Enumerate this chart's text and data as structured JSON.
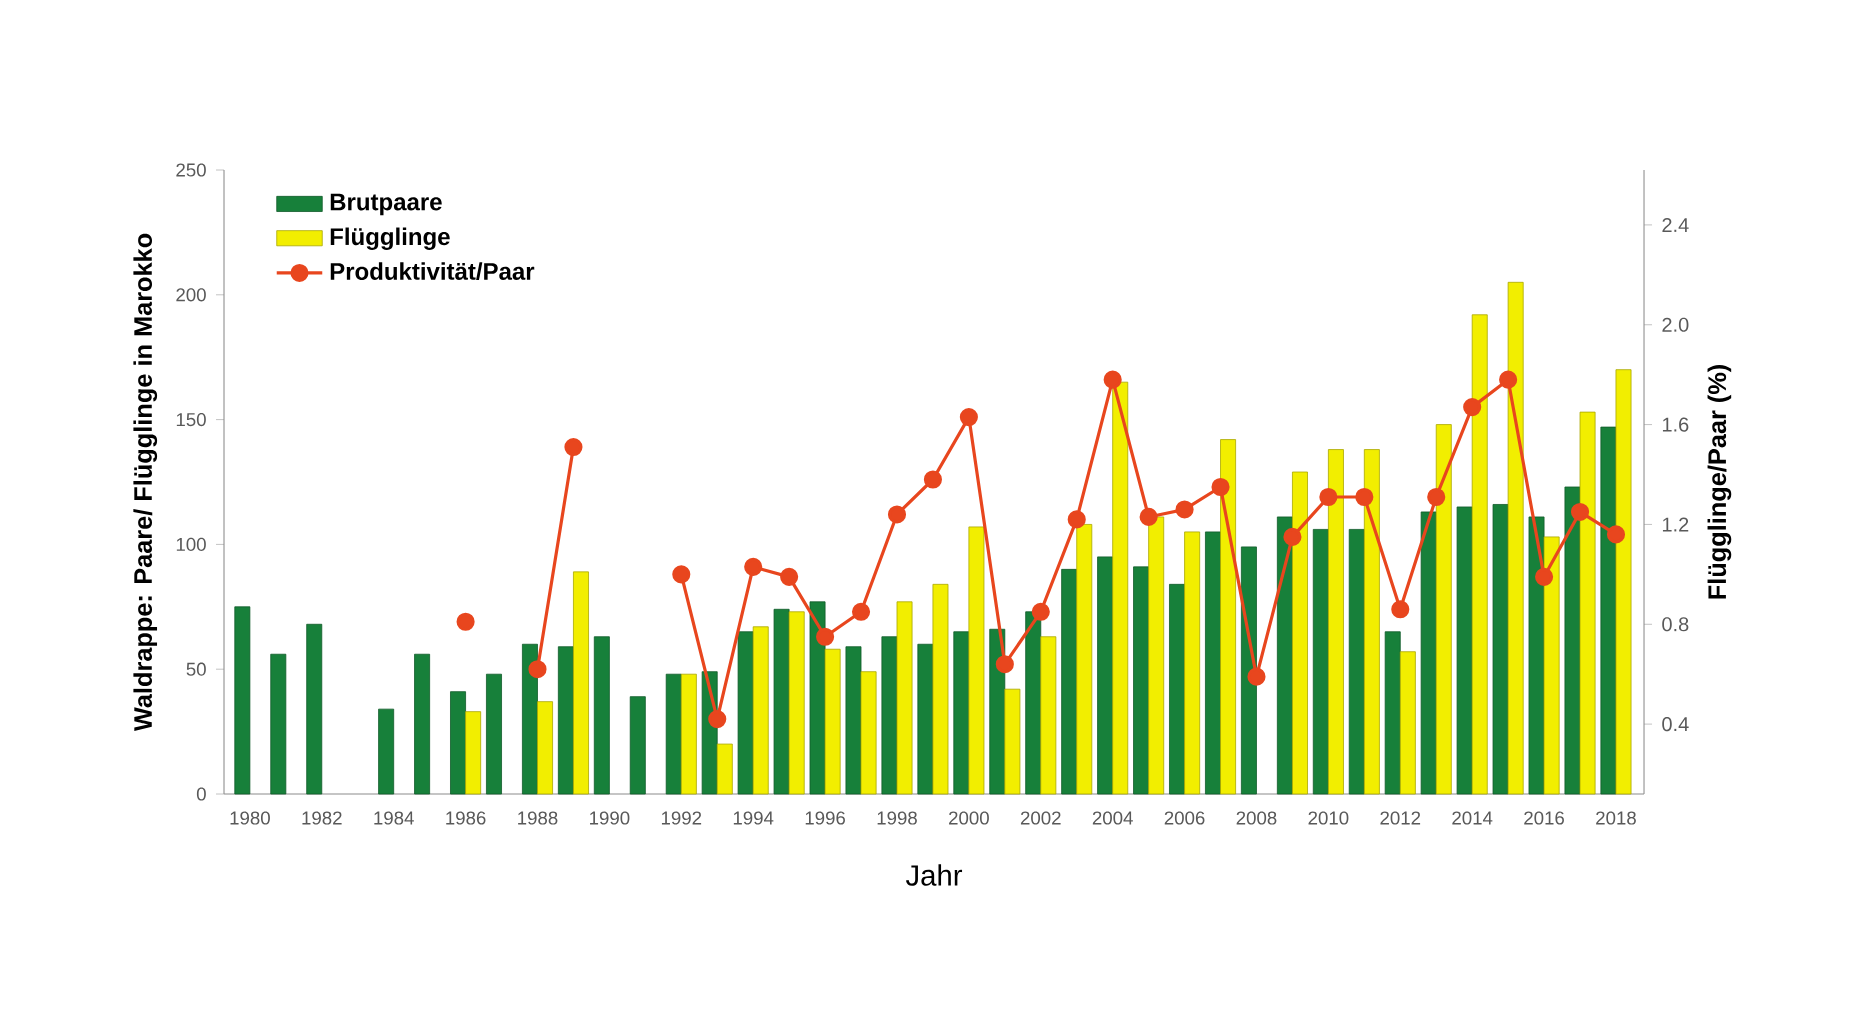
{
  "chart_data": {
    "type": "bar",
    "xlabel": "Jahr",
    "ylabel": "Waldrappe: Paare/ Flügglinge in Marokko",
    "y2label": "Flügglinge/Paar (%)",
    "categories": [
      "1980",
      null,
      "1982",
      null,
      "1984",
      null,
      "1986",
      null,
      "1988",
      null,
      "1990",
      null,
      "1992",
      null,
      "1994",
      null,
      "1996",
      null,
      "1998",
      null,
      "2000",
      null,
      "2002",
      null,
      "2004",
      null,
      "2006",
      null,
      "2008",
      null,
      "2010",
      null,
      "2012",
      null,
      "2014",
      null,
      "2016",
      null,
      "2018"
    ],
    "series": [
      {
        "name": "Brutpaare",
        "color": "#17803a",
        "values": [
          75,
          56,
          68,
          null,
          34,
          56,
          41,
          48,
          60,
          59,
          63,
          39,
          48,
          49,
          65,
          74,
          77,
          59,
          63,
          60,
          65,
          66,
          73,
          90,
          95,
          91,
          84,
          105,
          99,
          111,
          106,
          106,
          65,
          113,
          115,
          116,
          111,
          123,
          147
        ]
      },
      {
        "name": "Flügglinge",
        "color": "#f2ee00",
        "values": [
          null,
          null,
          null,
          null,
          null,
          null,
          33,
          null,
          37,
          89,
          null,
          null,
          48,
          20,
          67,
          73,
          58,
          49,
          77,
          84,
          107,
          42,
          63,
          108,
          165,
          111,
          105,
          142,
          null,
          129,
          138,
          138,
          57,
          148,
          192,
          205,
          103,
          153,
          170
        ]
      },
      {
        "name": "Produktivität/Paar",
        "type": "line",
        "axis": "y2",
        "color": "#e8461e",
        "marker": "circle",
        "values": [
          null,
          null,
          null,
          null,
          null,
          null,
          0.81,
          null,
          0.62,
          1.51,
          null,
          null,
          1.0,
          0.42,
          1.03,
          0.99,
          0.75,
          0.85,
          1.24,
          1.38,
          1.63,
          0.64,
          0.85,
          1.22,
          1.78,
          1.23,
          1.26,
          1.35,
          0.59,
          1.15,
          1.31,
          1.31,
          0.86,
          1.31,
          1.67,
          1.78,
          0.99,
          1.25,
          1.16
        ]
      }
    ],
    "ylim": [
      0,
      250
    ],
    "yticks": [
      0,
      50,
      100,
      150,
      200,
      250
    ],
    "y2lim": [
      0.12,
      2.62
    ],
    "y2ticks": [
      0.4,
      0.8,
      1.2,
      1.6,
      {
        "value": 2,
        "label": "2.0"
      },
      2.4
    ],
    "legend": "top left",
    "grid": false
  }
}
